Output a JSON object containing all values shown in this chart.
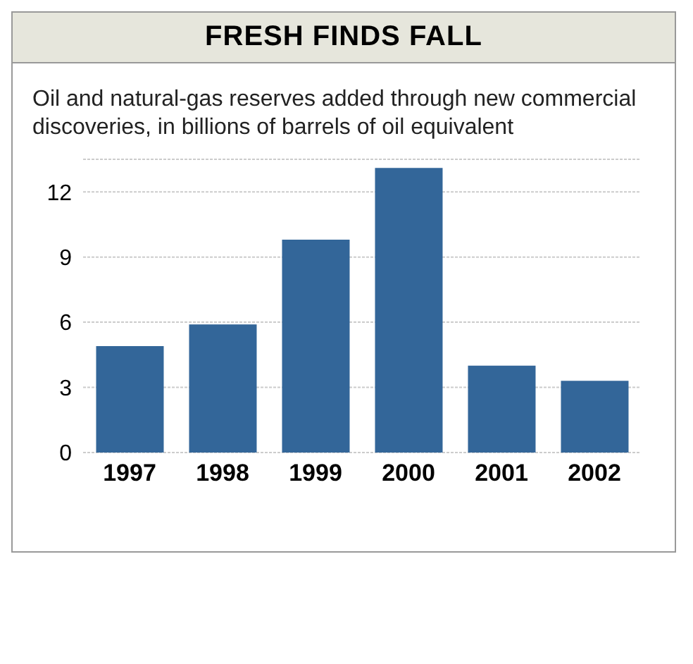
{
  "chart_data": {
    "type": "bar",
    "title": "FRESH FINDS FALL",
    "subtitle": "Oil and natural-gas reserves added through new commercial discoveries, in billions of barrels of oil equivalent",
    "categories": [
      "1997",
      "1998",
      "1999",
      "2000",
      "2001",
      "2002"
    ],
    "values": [
      4.9,
      5.9,
      9.8,
      13.1,
      4.0,
      3.3
    ],
    "color": "#336699",
    "ylim": [
      0,
      13.5
    ],
    "yticks": [
      0,
      3,
      6,
      9,
      12
    ],
    "grid": "y"
  }
}
